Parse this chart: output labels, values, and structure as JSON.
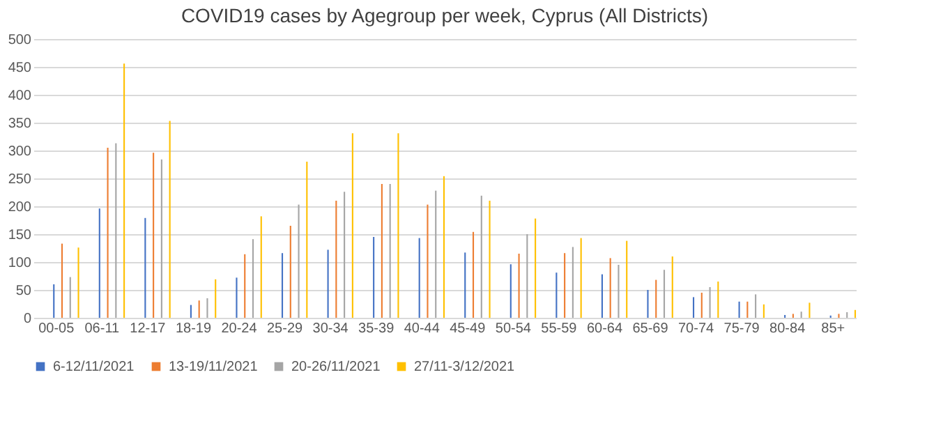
{
  "chart_data": {
    "type": "bar",
    "title": "COVID19 cases by Agegroup per week, Cyprus (All Districts)",
    "categories": [
      "00-05",
      "06-11",
      "12-17",
      "18-19",
      "20-24",
      "25-29",
      "30-34",
      "35-39",
      "40-44",
      "45-49",
      "50-54",
      "55-59",
      "60-64",
      "65-69",
      "70-74",
      "75-79",
      "80-84",
      "85+"
    ],
    "series": [
      {
        "name": "6-12/11/2021",
        "color": "#4472c4",
        "values": [
          60,
          196,
          179,
          23,
          72,
          116,
          122,
          145,
          143,
          117,
          96,
          81,
          78,
          50,
          37,
          29,
          5,
          4
        ]
      },
      {
        "name": "13-19/11/2021",
        "color": "#ed7d31",
        "values": [
          133,
          305,
          296,
          31,
          114,
          165,
          210,
          240,
          203,
          154,
          115,
          116,
          107,
          68,
          45,
          29,
          7,
          7
        ]
      },
      {
        "name": "20-26/11/2021",
        "color": "#a5a5a5",
        "values": [
          73,
          313,
          284,
          35,
          141,
          203,
          226,
          240,
          228,
          219,
          150,
          127,
          95,
          86,
          55,
          42,
          11,
          10
        ]
      },
      {
        "name": "27/11-3/12/2021",
        "color": "#ffc000",
        "values": [
          126,
          456,
          353,
          69,
          182,
          280,
          331,
          331,
          254,
          210,
          178,
          143,
          138,
          110,
          65,
          24,
          27,
          14
        ]
      }
    ],
    "ylim": [
      0,
      500
    ],
    "yticks": [
      0,
      50,
      100,
      150,
      200,
      250,
      300,
      350,
      400,
      450,
      500
    ],
    "grid": "y",
    "legend": "bottom"
  }
}
